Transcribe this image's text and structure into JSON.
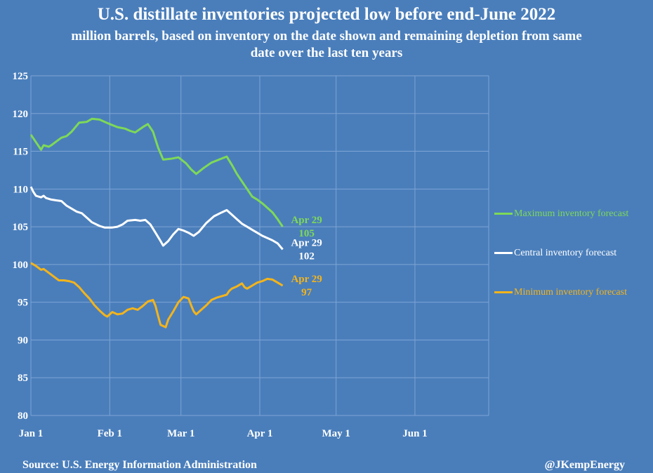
{
  "header": {
    "title": "U.S. distillate inventories projected low before end-June 2022",
    "subtitle": "million barrels, based on inventory on the date shown and remaining depletion from same date over the last ten years"
  },
  "footer": {
    "source": "Source: U.S. Energy Information Administration",
    "credit": "@JKempEnergy"
  },
  "chart_data": {
    "type": "line",
    "title": "U.S. distillate inventories projected low before end-June 2022",
    "subtitle": "million barrels, based on inventory on the date shown and remaining depletion from same date over the last ten years",
    "xlabel": "",
    "ylabel": "",
    "x_range": [
      "Jan 1",
      "Jun 30"
    ],
    "x_ticks": [
      {
        "label": "Jan 1",
        "day": 1
      },
      {
        "label": "Feb 1",
        "day": 32
      },
      {
        "label": "Mar 1",
        "day": 60
      },
      {
        "label": "Apr 1",
        "day": 91
      },
      {
        "label": "May 1",
        "day": 121
      },
      {
        "label": "Jun 1",
        "day": 152
      }
    ],
    "ylim": [
      80,
      125
    ],
    "y_ticks": [
      80,
      85,
      90,
      95,
      100,
      105,
      110,
      115,
      120,
      125
    ],
    "grid": true,
    "legend_position": "right",
    "series": [
      {
        "name": "Maximum inventory forecast",
        "color": "#7ed957",
        "end_label": {
          "date": "Apr 29",
          "value": "105"
        },
        "points": [
          [
            1,
            117.2
          ],
          [
            3,
            116.2
          ],
          [
            5,
            115.2
          ],
          [
            6,
            115.8
          ],
          [
            8,
            115.6
          ],
          [
            9,
            115.8
          ],
          [
            11,
            116.3
          ],
          [
            13,
            116.8
          ],
          [
            15,
            117.0
          ],
          [
            17,
            117.6
          ],
          [
            20,
            118.8
          ],
          [
            23,
            118.9
          ],
          [
            25,
            119.3
          ],
          [
            28,
            119.2
          ],
          [
            30,
            118.9
          ],
          [
            32,
            118.6
          ],
          [
            35,
            118.2
          ],
          [
            38,
            118.0
          ],
          [
            40,
            117.7
          ],
          [
            42,
            117.5
          ],
          [
            45,
            118.2
          ],
          [
            47,
            118.6
          ],
          [
            49,
            117.6
          ],
          [
            51,
            115.5
          ],
          [
            53,
            113.9
          ],
          [
            56,
            114.0
          ],
          [
            59,
            114.2
          ],
          [
            62,
            113.4
          ],
          [
            64,
            112.6
          ],
          [
            66,
            112.0
          ],
          [
            69,
            112.8
          ],
          [
            72,
            113.5
          ],
          [
            75,
            113.9
          ],
          [
            78,
            114.3
          ],
          [
            80,
            113.2
          ],
          [
            82,
            112.0
          ],
          [
            84,
            111.0
          ],
          [
            86,
            110.0
          ],
          [
            88,
            109.0
          ],
          [
            90,
            108.6
          ],
          [
            92,
            108.1
          ],
          [
            94,
            107.5
          ],
          [
            96,
            106.9
          ],
          [
            98,
            106.0
          ],
          [
            100,
            105.0
          ]
        ]
      },
      {
        "name": "Central inventory forecast",
        "color": "#ffffff",
        "end_label": {
          "date": "Apr 29",
          "value": "102"
        },
        "points": [
          [
            1,
            110.3
          ],
          [
            2,
            109.6
          ],
          [
            3,
            109.1
          ],
          [
            5,
            108.9
          ],
          [
            6,
            109.1
          ],
          [
            7,
            108.8
          ],
          [
            9,
            108.6
          ],
          [
            11,
            108.5
          ],
          [
            13,
            108.4
          ],
          [
            15,
            107.8
          ],
          [
            17,
            107.4
          ],
          [
            19,
            107.0
          ],
          [
            21,
            106.8
          ],
          [
            23,
            106.2
          ],
          [
            25,
            105.6
          ],
          [
            28,
            105.1
          ],
          [
            30,
            104.9
          ],
          [
            33,
            104.9
          ],
          [
            35,
            105.0
          ],
          [
            37,
            105.3
          ],
          [
            39,
            105.8
          ],
          [
            42,
            105.9
          ],
          [
            44,
            105.8
          ],
          [
            46,
            105.9
          ],
          [
            48,
            105.3
          ],
          [
            50,
            104.2
          ],
          [
            52,
            103.1
          ],
          [
            53,
            102.5
          ],
          [
            55,
            103.1
          ],
          [
            57,
            104.0
          ],
          [
            59,
            104.7
          ],
          [
            61,
            104.5
          ],
          [
            63,
            104.2
          ],
          [
            65,
            103.8
          ],
          [
            67,
            104.3
          ],
          [
            70,
            105.5
          ],
          [
            73,
            106.4
          ],
          [
            76,
            106.9
          ],
          [
            78,
            107.2
          ],
          [
            80,
            106.6
          ],
          [
            82,
            106.0
          ],
          [
            84,
            105.4
          ],
          [
            86,
            105.0
          ],
          [
            88,
            104.6
          ],
          [
            90,
            104.2
          ],
          [
            92,
            103.8
          ],
          [
            94,
            103.5
          ],
          [
            96,
            103.2
          ],
          [
            98,
            102.8
          ],
          [
            100,
            102.0
          ]
        ]
      },
      {
        "name": "Minimum inventory forecast",
        "color": "#f4b41a",
        "end_label": {
          "date": "Apr 29",
          "value": "97"
        },
        "points": [
          [
            1,
            100.2
          ],
          [
            3,
            99.8
          ],
          [
            5,
            99.3
          ],
          [
            6,
            99.4
          ],
          [
            8,
            98.9
          ],
          [
            10,
            98.4
          ],
          [
            12,
            97.9
          ],
          [
            14,
            97.9
          ],
          [
            16,
            97.8
          ],
          [
            18,
            97.6
          ],
          [
            20,
            97.0
          ],
          [
            22,
            96.2
          ],
          [
            24,
            95.5
          ],
          [
            26,
            94.6
          ],
          [
            28,
            93.9
          ],
          [
            30,
            93.3
          ],
          [
            31,
            93.1
          ],
          [
            33,
            93.7
          ],
          [
            35,
            93.4
          ],
          [
            37,
            93.5
          ],
          [
            39,
            94.0
          ],
          [
            41,
            94.2
          ],
          [
            43,
            94.0
          ],
          [
            45,
            94.5
          ],
          [
            47,
            95.1
          ],
          [
            49,
            95.3
          ],
          [
            50,
            94.5
          ],
          [
            51,
            93.2
          ],
          [
            52,
            92.0
          ],
          [
            54,
            91.7
          ],
          [
            55,
            92.7
          ],
          [
            57,
            93.8
          ],
          [
            59,
            95.0
          ],
          [
            61,
            95.7
          ],
          [
            63,
            95.5
          ],
          [
            64,
            94.6
          ],
          [
            65,
            93.8
          ],
          [
            66,
            93.4
          ],
          [
            68,
            94.0
          ],
          [
            70,
            94.6
          ],
          [
            72,
            95.3
          ],
          [
            74,
            95.6
          ],
          [
            76,
            95.8
          ],
          [
            78,
            96.0
          ],
          [
            79,
            96.5
          ],
          [
            80,
            96.8
          ],
          [
            82,
            97.1
          ],
          [
            84,
            97.5
          ],
          [
            85,
            97.0
          ],
          [
            86,
            96.8
          ],
          [
            88,
            97.2
          ],
          [
            90,
            97.6
          ],
          [
            92,
            97.8
          ],
          [
            94,
            98.1
          ],
          [
            96,
            98.0
          ],
          [
            98,
            97.6
          ],
          [
            100,
            97.2
          ]
        ]
      }
    ]
  }
}
